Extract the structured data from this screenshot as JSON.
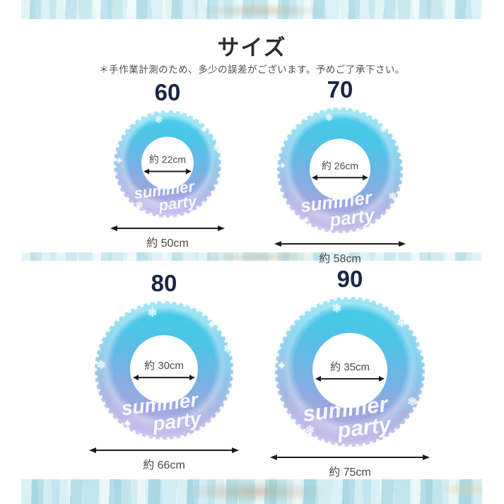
{
  "page": {
    "title": "サイズ",
    "note": "＊手作業計測のため、多少の誤差がございます。予めご了承下さい。"
  },
  "rings": [
    {
      "size_label": "60",
      "inner_diameter": "約 22cm",
      "outer_diameter": "約 50cm"
    },
    {
      "size_label": "70",
      "inner_diameter": "約 26cm",
      "outer_diameter": "約 58cm"
    },
    {
      "size_label": "80",
      "inner_diameter": "約 30cm",
      "outer_diameter": "約 66cm"
    },
    {
      "size_label": "90",
      "inner_diameter": "約 35cm",
      "outer_diameter": "約 75cm"
    }
  ],
  "ring_print": {
    "line1": "summer",
    "line2": "party"
  },
  "icons": {
    "snowflake": "❄",
    "sparkle": "✦"
  },
  "colors": {
    "ring_top": "#3ecde9",
    "ring_middle": "#6fb4e4",
    "ring_bottom": "#b9aee6",
    "size_label_text": "#1b2544",
    "measure_text": "#4a4a4a",
    "arrow": "#1c1c1c",
    "water_band": "#cfe9ef",
    "background": "#ffffff"
  }
}
